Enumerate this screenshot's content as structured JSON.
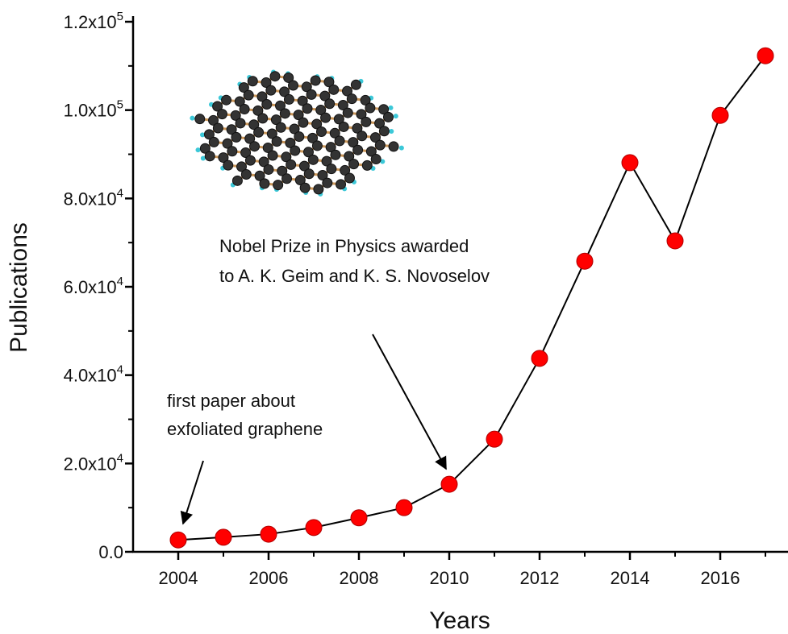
{
  "chart_data": {
    "type": "line",
    "x_label": "Years",
    "y_label": "Publications",
    "x": [
      2004,
      2005,
      2006,
      2007,
      2008,
      2009,
      2010,
      2011,
      2012,
      2013,
      2014,
      2015,
      2016,
      2017
    ],
    "values": [
      2700,
      3300,
      4000,
      5500,
      7700,
      10000,
      15300,
      25500,
      43800,
      65800,
      88100,
      70400,
      98800,
      112300
    ],
    "line_color": "#000000",
    "marker_color": "#ff0000",
    "xlim": [
      2003,
      2017.5
    ],
    "xticks": [
      2004,
      2006,
      2008,
      2010,
      2012,
      2014,
      2016
    ],
    "ylim": [
      0,
      120000
    ],
    "yticks": [
      {
        "value": 0,
        "label": "0.0"
      },
      {
        "value": 20000,
        "label": "2.0x10",
        "exponent": "4"
      },
      {
        "value": 40000,
        "label": "4.0x10",
        "exponent": "4"
      },
      {
        "value": 60000,
        "label": "6.0x10",
        "exponent": "4"
      },
      {
        "value": 80000,
        "label": "8.0x10",
        "exponent": "4"
      },
      {
        "value": 100000,
        "label": "1.0x10",
        "exponent": "5"
      },
      {
        "value": 120000,
        "label": "1.2x10",
        "exponent": "5"
      }
    ],
    "annotations": [
      {
        "lines": [
          "first paper about",
          "exfoliated graphene"
        ]
      },
      {
        "lines": [
          "Nobel Prize in Physics awarded",
          "to A. K. Geim and K. S. Novoselov"
        ]
      }
    ]
  }
}
